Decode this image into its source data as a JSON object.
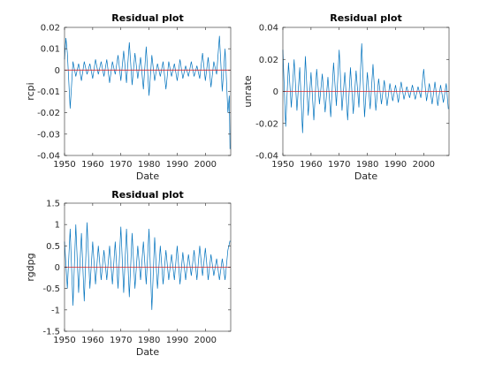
{
  "colors": {
    "series": "#0072bd",
    "zero_line": "#d62728",
    "axes": "#262626",
    "background": "#ffffff"
  },
  "chart_data": [
    {
      "type": "line",
      "title": "Residual plot",
      "xlabel": "Date",
      "ylabel": "rcpi",
      "xlim": [
        1950,
        2009
      ],
      "ylim": [
        -0.04,
        0.02
      ],
      "xticks": [
        1950,
        1960,
        1970,
        1980,
        1990,
        2000
      ],
      "xtick_labels": [
        "1950",
        "1960",
        "1970",
        "1980",
        "1990",
        "2000"
      ],
      "yticks": [
        0.02,
        0.01,
        0,
        -0.01,
        -0.02,
        -0.03,
        -0.04
      ],
      "ytick_labels": [
        "0.02",
        "0.01",
        "0",
        "-0.01",
        "-0.02",
        "-0.03",
        "-0.04"
      ],
      "grid": false,
      "reference_line": 0,
      "series": [
        {
          "x": [
            1949.25,
            1950.5,
            1951,
            1952,
            1953,
            1954,
            1955,
            1956,
            1957,
            1958,
            1959,
            1960,
            1961,
            1962,
            1963,
            1964,
            1965,
            1966,
            1967,
            1968,
            1969,
            1970,
            1971,
            1972,
            1973,
            1974,
            1975,
            1976,
            1977,
            1978,
            1979,
            1980,
            1981,
            1982,
            1983,
            1984,
            1985,
            1986,
            1987,
            1988,
            1989,
            1990,
            1991,
            1992,
            1993,
            1994,
            1995,
            1996,
            1997,
            1998,
            1999,
            2000,
            2001,
            2002,
            2003,
            2004,
            2005,
            2006,
            2007,
            2008,
            2008.5,
            2008.75
          ],
          "y": [
            0.005,
            0.015,
            0.008,
            -0.018,
            0.004,
            -0.003,
            0.003,
            -0.005,
            0.004,
            -0.002,
            0.003,
            -0.004,
            0.005,
            -0.002,
            0.004,
            -0.003,
            0.005,
            -0.006,
            0.004,
            -0.002,
            0.007,
            -0.005,
            0.009,
            -0.006,
            0.013,
            -0.007,
            0.008,
            -0.004,
            0.006,
            -0.009,
            0.011,
            -0.012,
            0.007,
            -0.005,
            0.003,
            -0.003,
            0.004,
            -0.009,
            0.004,
            -0.003,
            0.003,
            -0.005,
            0.005,
            -0.004,
            0.002,
            -0.003,
            0.004,
            -0.003,
            0.002,
            -0.004,
            0.008,
            -0.005,
            0.006,
            -0.008,
            0.004,
            -0.002,
            0.016,
            -0.01,
            0.01,
            -0.02,
            -0.012,
            -0.037
          ]
        }
      ]
    },
    {
      "type": "line",
      "title": "Residual plot",
      "xlabel": "Date",
      "ylabel": "unrate",
      "xlim": [
        1950,
        2009
      ],
      "ylim": [
        -0.04,
        0.04
      ],
      "xticks": [
        1950,
        1960,
        1970,
        1980,
        1990,
        2000
      ],
      "xtick_labels": [
        "1950",
        "1960",
        "1970",
        "1980",
        "1990",
        "2000"
      ],
      "yticks": [
        0.04,
        0.02,
        0,
        -0.02,
        -0.04
      ],
      "ytick_labels": [
        "0.04",
        "0.02",
        "0",
        "-0.02",
        "-0.04"
      ],
      "grid": false,
      "reference_line": 0,
      "series": [
        {
          "x": [
            1950,
            1951,
            1952,
            1953,
            1954,
            1955,
            1956,
            1957,
            1958,
            1959,
            1960,
            1961,
            1962,
            1963,
            1964,
            1965,
            1966,
            1967,
            1968,
            1969,
            1970,
            1971,
            1972,
            1973,
            1974,
            1975,
            1976,
            1977,
            1978,
            1979,
            1980,
            1981,
            1982,
            1983,
            1984,
            1985,
            1986,
            1987,
            1988,
            1989,
            1990,
            1991,
            1992,
            1993,
            1994,
            1995,
            1996,
            1997,
            1998,
            1999,
            2000,
            2001,
            2002,
            2003,
            2004,
            2005,
            2006,
            2007,
            2008,
            2008.75
          ],
          "y": [
            0.026,
            -0.022,
            0.018,
            -0.01,
            0.02,
            -0.012,
            0.015,
            -0.026,
            0.022,
            -0.015,
            0.012,
            -0.018,
            0.014,
            -0.008,
            0.011,
            -0.013,
            0.009,
            -0.016,
            0.018,
            -0.009,
            0.026,
            -0.012,
            0.012,
            -0.018,
            0.015,
            -0.014,
            0.013,
            -0.01,
            0.03,
            -0.016,
            0.012,
            -0.011,
            0.017,
            -0.012,
            0.008,
            -0.008,
            0.007,
            -0.009,
            0.005,
            -0.006,
            0.004,
            -0.007,
            0.006,
            -0.005,
            0.003,
            -0.004,
            0.004,
            -0.005,
            0.003,
            -0.004,
            0.014,
            -0.006,
            0.005,
            -0.008,
            0.006,
            -0.009,
            0.004,
            -0.007,
            0.005,
            -0.011
          ]
        }
      ]
    },
    {
      "type": "line",
      "title": "Residual plot",
      "xlabel": "Date",
      "ylabel": "rgdpg",
      "xlim": [
        1950,
        2009
      ],
      "ylim": [
        -1.5,
        1.5
      ],
      "xticks": [
        1950,
        1960,
        1970,
        1980,
        1990,
        2000
      ],
      "xtick_labels": [
        "1950",
        "1960",
        "1970",
        "1980",
        "1990",
        "2000"
      ],
      "yticks": [
        1.5,
        1,
        0.5,
        0,
        -0.5,
        -1,
        -1.5
      ],
      "ytick_labels": [
        "1.5",
        "1",
        "0.5",
        "0",
        "-0.5",
        "-1",
        "-1.5"
      ],
      "grid": false,
      "reference_line": 0,
      "series": [
        {
          "x": [
            1950,
            1951,
            1952,
            1953,
            1954,
            1955,
            1956,
            1957,
            1958,
            1959,
            1960,
            1961,
            1962,
            1963,
            1964,
            1965,
            1966,
            1967,
            1968,
            1969,
            1970,
            1971,
            1972,
            1973,
            1974,
            1975,
            1976,
            1977,
            1978,
            1979,
            1980,
            1981,
            1982,
            1983,
            1984,
            1985,
            1986,
            1987,
            1988,
            1989,
            1990,
            1991,
            1992,
            1993,
            1994,
            1995,
            1996,
            1997,
            1998,
            1999,
            2000,
            2001,
            2002,
            2003,
            2004,
            2005,
            2006,
            2007,
            2008,
            2008.75
          ],
          "y": [
            0.6,
            -0.5,
            0.9,
            -0.9,
            1.0,
            -0.6,
            0.8,
            -0.8,
            1.05,
            -0.5,
            0.6,
            -0.4,
            0.5,
            -0.3,
            0.4,
            -0.3,
            0.5,
            -0.4,
            0.6,
            -0.5,
            0.95,
            -0.6,
            0.9,
            -0.7,
            0.8,
            -0.5,
            0.5,
            -0.3,
            0.6,
            -0.4,
            0.9,
            -1.0,
            0.7,
            -0.5,
            0.5,
            -0.4,
            0.4,
            -0.3,
            0.3,
            -0.3,
            0.5,
            -0.4,
            0.35,
            -0.3,
            0.3,
            -0.2,
            0.4,
            -0.3,
            0.5,
            -0.2,
            0.45,
            -0.3,
            0.3,
            -0.2,
            0.2,
            -0.3,
            0.2,
            -0.3,
            0.4,
            0.62
          ]
        }
      ]
    }
  ]
}
